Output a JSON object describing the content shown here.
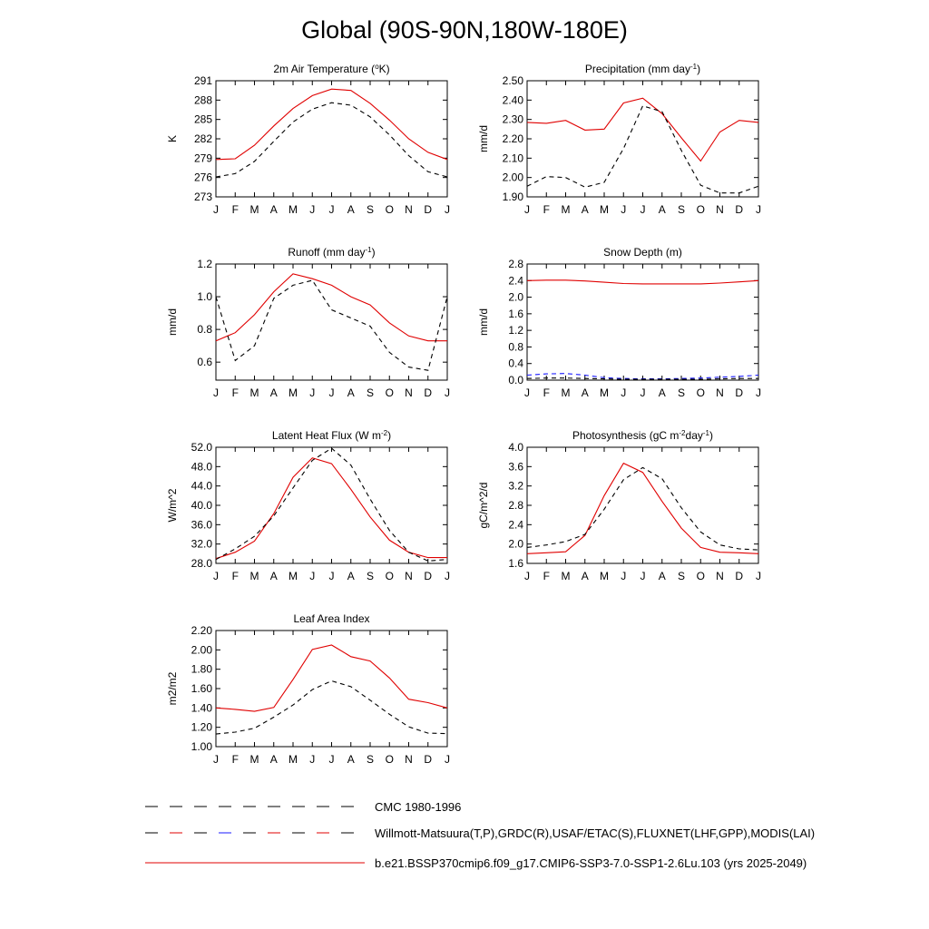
{
  "page_title": "Global (90S-90N,180W-180E)",
  "months": [
    "J",
    "F",
    "M",
    "A",
    "M",
    "J",
    "J",
    "A",
    "S",
    "O",
    "N",
    "D",
    "J"
  ],
  "colors": {
    "model": "#e00000",
    "obs": "#000000",
    "obs_alt": "#1a1aff"
  },
  "legend": [
    {
      "label": "CMC 1980-1996",
      "style": "dashed-black"
    },
    {
      "label": "Willmott-Matsuura(T,P),GRDC(R),USAF/ETAC(S),FLUXNET(LHF,GPP),MODIS(LAI)",
      "style": "dashed-multicolor"
    },
    {
      "label": "b.e21.BSSP370cmip6.f09_g17.CMIP6-SSP3-7.0-SSP1-2.6Lu.103 (yrs 2025-2049)",
      "style": "solid-red"
    }
  ],
  "chart_data": [
    {
      "type": "line",
      "title": "2m Air Temperature (°K)",
      "title_main": "2m Air Temperature (",
      "title_sup": "o",
      "title_rest": "K)",
      "ylabel": "K",
      "ylim": [
        273,
        291
      ],
      "yticks": [
        "273",
        "276",
        "279",
        "282",
        "285",
        "288",
        "291"
      ],
      "categories": [
        "J",
        "F",
        "M",
        "A",
        "M",
        "J",
        "J",
        "A",
        "S",
        "O",
        "N",
        "D",
        "J"
      ],
      "series": [
        {
          "style": "solid",
          "color": "#e00000",
          "values": [
            278.8,
            278.9,
            281.0,
            284.0,
            286.7,
            288.7,
            289.7,
            289.5,
            287.5,
            284.9,
            282.0,
            279.9,
            278.8
          ]
        },
        {
          "style": "dashed",
          "color": "#000000",
          "values": [
            276.1,
            276.6,
            278.5,
            281.6,
            284.6,
            286.6,
            287.6,
            287.2,
            285.4,
            282.6,
            279.4,
            276.9,
            276.1
          ]
        }
      ]
    },
    {
      "type": "line",
      "title": "Precipitation (mm day-1)",
      "title_main": "Precipitation (mm day",
      "title_sup": "-1",
      "title_rest": ")",
      "ylabel": "mm/d",
      "ylim": [
        1.9,
        2.5
      ],
      "yticks": [
        "1.90",
        "2.00",
        "2.10",
        "2.20",
        "2.30",
        "2.40",
        "2.50"
      ],
      "categories": [
        "J",
        "F",
        "M",
        "A",
        "M",
        "J",
        "J",
        "A",
        "S",
        "O",
        "N",
        "D",
        "J"
      ],
      "series": [
        {
          "style": "solid",
          "color": "#e00000",
          "values": [
            2.285,
            2.28,
            2.295,
            2.245,
            2.25,
            2.385,
            2.41,
            2.33,
            2.205,
            2.085,
            2.235,
            2.295,
            2.285
          ]
        },
        {
          "style": "dashed",
          "color": "#000000",
          "values": [
            1.955,
            2.005,
            2.0,
            1.95,
            1.975,
            2.15,
            2.37,
            2.34,
            2.14,
            1.96,
            1.92,
            1.92,
            1.955
          ]
        }
      ]
    },
    {
      "type": "line",
      "title": "Runoff (mm day-1)",
      "title_main": "Runoff (mm day",
      "title_sup": "-1",
      "title_rest": ")",
      "ylabel": "mm/d",
      "ylim": [
        0.49,
        1.2
      ],
      "yticks": [
        "0.6",
        "0.8",
        "1.0",
        "1.2"
      ],
      "ytick_values": [
        0.6,
        0.8,
        1.0,
        1.2
      ],
      "categories": [
        "J",
        "F",
        "M",
        "A",
        "M",
        "J",
        "J",
        "A",
        "S",
        "O",
        "N",
        "D",
        "J"
      ],
      "series": [
        {
          "style": "solid",
          "color": "#e00000",
          "values": [
            0.73,
            0.78,
            0.89,
            1.03,
            1.14,
            1.11,
            1.07,
            1.0,
            0.95,
            0.84,
            0.76,
            0.73,
            0.73
          ]
        },
        {
          "style": "dashed",
          "color": "#000000",
          "values": [
            1.0,
            0.61,
            0.7,
            0.99,
            1.07,
            1.1,
            0.92,
            0.87,
            0.82,
            0.66,
            0.57,
            0.55,
            1.0
          ]
        }
      ]
    },
    {
      "type": "line",
      "title": "Snow Depth (m)",
      "title_main": "Snow Depth (m)",
      "title_sup": "",
      "title_rest": "",
      "ylabel": "mm/d",
      "ylim": [
        0.0,
        2.8
      ],
      "yticks": [
        "0.0",
        "0.4",
        "0.8",
        "1.2",
        "1.6",
        "2.0",
        "2.4",
        "2.8"
      ],
      "categories": [
        "J",
        "F",
        "M",
        "A",
        "M",
        "J",
        "J",
        "A",
        "S",
        "O",
        "N",
        "D",
        "J"
      ],
      "series": [
        {
          "style": "solid",
          "color": "#e00000",
          "values": [
            2.4,
            2.41,
            2.41,
            2.39,
            2.36,
            2.33,
            2.32,
            2.32,
            2.32,
            2.32,
            2.34,
            2.37,
            2.4
          ]
        },
        {
          "style": "dashed",
          "color": "#1a1aff",
          "values": [
            0.12,
            0.15,
            0.16,
            0.12,
            0.06,
            0.04,
            0.03,
            0.03,
            0.04,
            0.05,
            0.07,
            0.09,
            0.12
          ]
        },
        {
          "style": "dashed",
          "color": "#000000",
          "values": [
            0.04,
            0.05,
            0.05,
            0.04,
            0.03,
            0.02,
            0.02,
            0.02,
            0.02,
            0.02,
            0.03,
            0.04,
            0.04
          ]
        }
      ]
    },
    {
      "type": "line",
      "title": "Latent Heat Flux (W m-2)",
      "title_main": "Latent Heat Flux (W m",
      "title_sup": "-2",
      "title_rest": ")",
      "ylabel": "W/m^2",
      "ylim": [
        28.0,
        52.0
      ],
      "yticks": [
        "28.0",
        "32.0",
        "36.0",
        "40.0",
        "44.0",
        "48.0",
        "52.0"
      ],
      "categories": [
        "J",
        "F",
        "M",
        "A",
        "M",
        "J",
        "J",
        "A",
        "S",
        "O",
        "N",
        "D",
        "J"
      ],
      "series": [
        {
          "style": "solid",
          "color": "#e00000",
          "values": [
            29.0,
            30.3,
            32.6,
            38.3,
            45.8,
            49.8,
            48.6,
            43.3,
            37.6,
            32.8,
            30.3,
            29.2,
            29.2
          ]
        },
        {
          "style": "dashed",
          "color": "#000000",
          "values": [
            28.8,
            31.0,
            33.6,
            37.8,
            43.6,
            49.3,
            51.8,
            48.3,
            41.3,
            34.8,
            30.3,
            28.5,
            28.8
          ]
        }
      ]
    },
    {
      "type": "line",
      "title": "Photosynthesis (gC m-2day-1)",
      "title_main": "Photosynthesis (gC m",
      "title_sup": "-2",
      "title_rest": "day",
      "title_sup2": "-1",
      "title_rest2": ")",
      "ylabel": "gC/m^2/d",
      "ylim": [
        1.6,
        4.0
      ],
      "yticks": [
        "1.6",
        "2.0",
        "2.4",
        "2.8",
        "3.2",
        "3.6",
        "4.0"
      ],
      "categories": [
        "J",
        "F",
        "M",
        "A",
        "M",
        "J",
        "J",
        "A",
        "S",
        "O",
        "N",
        "D",
        "J"
      ],
      "series": [
        {
          "style": "solid",
          "color": "#e00000",
          "values": [
            1.8,
            1.82,
            1.84,
            2.18,
            3.0,
            3.67,
            3.48,
            2.88,
            2.33,
            1.93,
            1.83,
            1.82,
            1.8
          ]
        },
        {
          "style": "dashed",
          "color": "#000000",
          "values": [
            1.93,
            1.98,
            2.05,
            2.2,
            2.72,
            3.33,
            3.58,
            3.35,
            2.75,
            2.25,
            1.98,
            1.9,
            1.88
          ]
        }
      ]
    },
    {
      "type": "line",
      "title": "Leaf Area Index",
      "title_main": "Leaf Area Index",
      "title_sup": "",
      "title_rest": "",
      "ylabel": "m2/m2",
      "ylim": [
        1.0,
        2.2
      ],
      "yticks": [
        "1.00",
        "1.20",
        "1.40",
        "1.60",
        "1.80",
        "2.00",
        "2.20"
      ],
      "categories": [
        "J",
        "F",
        "M",
        "A",
        "M",
        "J",
        "J",
        "A",
        "S",
        "O",
        "N",
        "D",
        "J"
      ],
      "series": [
        {
          "style": "solid",
          "color": "#e00000",
          "values": [
            1.4,
            1.385,
            1.365,
            1.405,
            1.695,
            2.005,
            2.05,
            1.93,
            1.885,
            1.71,
            1.49,
            1.455,
            1.4
          ]
        },
        {
          "style": "dashed",
          "color": "#000000",
          "values": [
            1.13,
            1.15,
            1.19,
            1.305,
            1.43,
            1.59,
            1.68,
            1.62,
            1.48,
            1.335,
            1.205,
            1.14,
            1.135
          ]
        }
      ]
    }
  ]
}
